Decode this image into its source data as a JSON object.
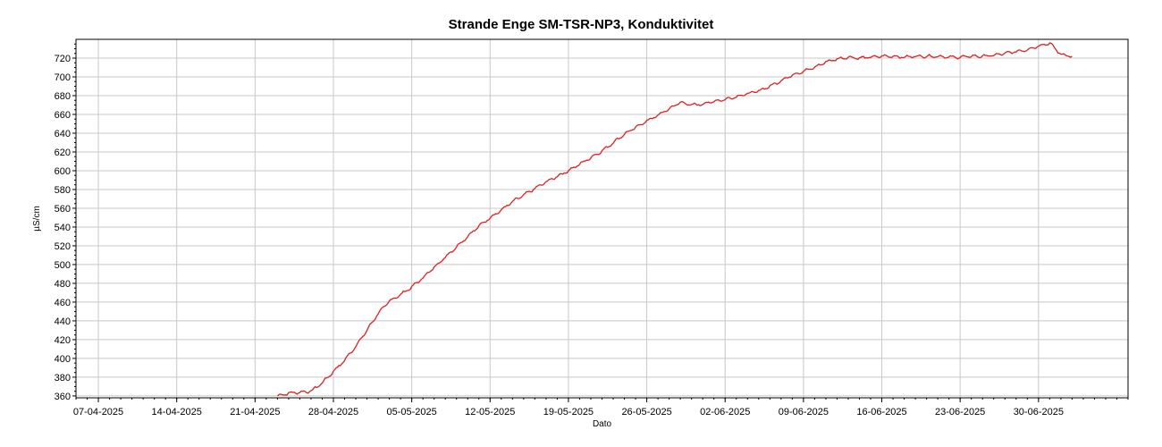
{
  "chart_data": {
    "type": "line",
    "title": "Strande Enge SM-TSR-NP3, Konduktivitet",
    "xlabel": "Dato",
    "ylabel": "µS/cm",
    "x_ticks": [
      "07-04-2025",
      "14-04-2025",
      "21-04-2025",
      "28-04-2025",
      "05-05-2025",
      "12-05-2025",
      "19-05-2025",
      "26-05-2025",
      "02-06-2025",
      "09-06-2025",
      "16-06-2025",
      "23-06-2025",
      "30-06-2025"
    ],
    "y_ticks": [
      360,
      380,
      400,
      420,
      440,
      460,
      480,
      500,
      520,
      540,
      560,
      580,
      600,
      620,
      640,
      660,
      680,
      700,
      720
    ],
    "xlim": [
      "2025-04-05",
      "2025-07-08"
    ],
    "ylim": [
      358,
      740
    ],
    "grid": true,
    "line_color": "#e02020",
    "series": [
      {
        "x": [
          "2025-04-23",
          "2025-04-24",
          "2025-04-25",
          "2025-04-26",
          "2025-04-27",
          "2025-04-28",
          "2025-04-29",
          "2025-04-30",
          "2025-05-01",
          "2025-05-02",
          "2025-05-03",
          "2025-05-04",
          "2025-05-05",
          "2025-05-06",
          "2025-05-07",
          "2025-05-08",
          "2025-05-09",
          "2025-05-10",
          "2025-05-11",
          "2025-05-12",
          "2025-05-13",
          "2025-05-14",
          "2025-05-15",
          "2025-05-16",
          "2025-05-17",
          "2025-05-18",
          "2025-05-19",
          "2025-05-20",
          "2025-05-21",
          "2025-05-22",
          "2025-05-23",
          "2025-05-24",
          "2025-05-25",
          "2025-05-26",
          "2025-05-27",
          "2025-05-28",
          "2025-05-29",
          "2025-05-30",
          "2025-05-31",
          "2025-06-01",
          "2025-06-02",
          "2025-06-03",
          "2025-06-04",
          "2025-06-05",
          "2025-06-06",
          "2025-06-07",
          "2025-06-08",
          "2025-06-09",
          "2025-06-10",
          "2025-06-11",
          "2025-06-12",
          "2025-06-13",
          "2025-06-14",
          "2025-06-15",
          "2025-06-16",
          "2025-06-17",
          "2025-06-18",
          "2025-06-19",
          "2025-06-20",
          "2025-06-21",
          "2025-06-22",
          "2025-06-23",
          "2025-06-24",
          "2025-06-25",
          "2025-06-26",
          "2025-06-27",
          "2025-06-28",
          "2025-06-29",
          "2025-06-30",
          "2025-07-01",
          "2025-07-02",
          "2025-07-03"
        ],
        "values": [
          360,
          363,
          364,
          365,
          374,
          386,
          398,
          413,
          430,
          448,
          461,
          468,
          476,
          486,
          497,
          508,
          519,
          530,
          541,
          550,
          558,
          567,
          574,
          581,
          588,
          594,
          600,
          607,
          614,
          621,
          630,
          639,
          646,
          653,
          659,
          666,
          673,
          670,
          671,
          674,
          676,
          679,
          682,
          685,
          690,
          696,
          702,
          706,
          710,
          716,
          719,
          721,
          720,
          721,
          722,
          722,
          721,
          722,
          722,
          722,
          721,
          721,
          722,
          722,
          723,
          725,
          727,
          729,
          733,
          736,
          724,
          722
        ]
      }
    ]
  }
}
